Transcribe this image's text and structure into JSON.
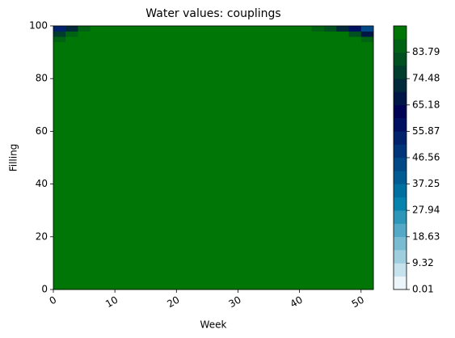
{
  "chart_data": {
    "type": "contour",
    "title": "Water values: couplings",
    "xlabel": "Week",
    "ylabel": "Filling",
    "x": [
      0,
      2,
      4,
      6,
      8,
      10,
      12,
      14,
      16,
      18,
      20,
      22,
      24,
      26,
      28,
      30,
      32,
      34,
      36,
      38,
      40,
      42,
      44,
      46,
      48,
      50,
      52
    ],
    "y": [
      0,
      90,
      92,
      94,
      96,
      98,
      100
    ],
    "z": [
      [
        93,
        93,
        93,
        93,
        93,
        93,
        93,
        93,
        93,
        93,
        93,
        93,
        93,
        93,
        93,
        93,
        93,
        93,
        93,
        93,
        93,
        93,
        93,
        93,
        93,
        93,
        93
      ],
      [
        93,
        93,
        93,
        93,
        93,
        93,
        93,
        93,
        93,
        93,
        93,
        93,
        93,
        93,
        93,
        93,
        93,
        93,
        93,
        93,
        93,
        93,
        93,
        93,
        93,
        93,
        93
      ],
      [
        93,
        93,
        93,
        93,
        93,
        93,
        93,
        93,
        93,
        93,
        93,
        93,
        93,
        93,
        93,
        93,
        93,
        93,
        93,
        93,
        93,
        93,
        93,
        93,
        93,
        93,
        90
      ],
      [
        90,
        93,
        93,
        93,
        93,
        93,
        93,
        93,
        93,
        93,
        93,
        93,
        93,
        93,
        93,
        93,
        93,
        93,
        93,
        93,
        93,
        93,
        93,
        93,
        93,
        91,
        88
      ],
      [
        80,
        90,
        93,
        93,
        93,
        93,
        93,
        93,
        93,
        93,
        93,
        93,
        93,
        93,
        93,
        93,
        93,
        93,
        93,
        93,
        93,
        93,
        93,
        93,
        91,
        86,
        75
      ],
      [
        60,
        80,
        90,
        93,
        93,
        93,
        93,
        93,
        93,
        93,
        93,
        93,
        93,
        93,
        93,
        93,
        93,
        93,
        93,
        93,
        93,
        93,
        92,
        88,
        82,
        68,
        50
      ],
      [
        20,
        45,
        70,
        88,
        93,
        93,
        93,
        93,
        93,
        93,
        93,
        93,
        93,
        93,
        93,
        93,
        93,
        93,
        93,
        93,
        92,
        88,
        80,
        65,
        50,
        35,
        15
      ]
    ],
    "xlim": [
      0,
      52
    ],
    "ylim": [
      0,
      100
    ],
    "xticks": [
      0,
      10,
      20,
      30,
      40,
      50
    ],
    "yticks": [
      0,
      20,
      40,
      60,
      80,
      100
    ],
    "levels": [
      0.01,
      4.66,
      9.32,
      13.97,
      18.63,
      23.28,
      27.94,
      32.59,
      37.25,
      41.9,
      46.56,
      51.21,
      55.87,
      60.52,
      65.18,
      69.83,
      74.48,
      79.14,
      83.79,
      88.45,
      93.1
    ],
    "level_colors": [
      "#ecf5f9",
      "#c6e2ec",
      "#9fcfdf",
      "#79bcd2",
      "#53a9c6",
      "#2d96b9",
      "#0683ac",
      "#0070a0",
      "#005c93",
      "#004986",
      "#003679",
      "#00236c",
      "#001060",
      "#000353",
      "#001646",
      "#002939",
      "#003d2d",
      "#005020",
      "#006313",
      "#007606"
    ],
    "colorbar_ticks": [
      0.01,
      9.32,
      18.63,
      27.94,
      37.25,
      46.56,
      55.87,
      65.18,
      74.48,
      83.79
    ]
  }
}
